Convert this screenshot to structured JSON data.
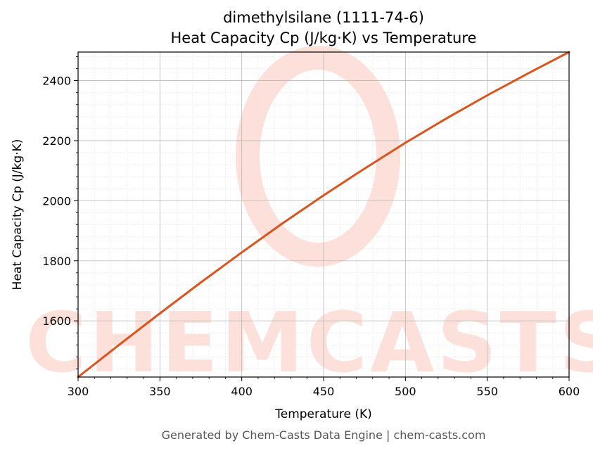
{
  "chart_data": {
    "type": "line",
    "title_line1": "dimethylsilane (1111-74-6)",
    "title_line2": "Heat Capacity Cp (J/kg·K) vs Temperature",
    "xlabel": "Temperature (K)",
    "ylabel": "Heat Capacity Cp (J/kg·K)",
    "xlim": [
      300,
      600
    ],
    "ylim": [
      1413,
      2495
    ],
    "xticks": [
      300,
      350,
      400,
      450,
      500,
      550,
      600
    ],
    "yticks": [
      1600,
      1800,
      2000,
      2200,
      2400
    ],
    "grid": true,
    "line_color": "#d9541e",
    "series": [
      {
        "x": [
          300,
          325,
          350,
          375,
          400,
          425,
          450,
          475,
          500,
          525,
          550,
          575,
          600
        ],
        "y": [
          1413,
          1520,
          1625,
          1728,
          1828,
          1925,
          2018,
          2107,
          2193,
          2274,
          2351,
          2424,
          2495
        ]
      }
    ]
  },
  "watermark": {
    "text": "CHEMCASTS",
    "color": "#fde0da"
  },
  "footer": "Generated by Chem-Casts Data Engine | chem-casts.com"
}
